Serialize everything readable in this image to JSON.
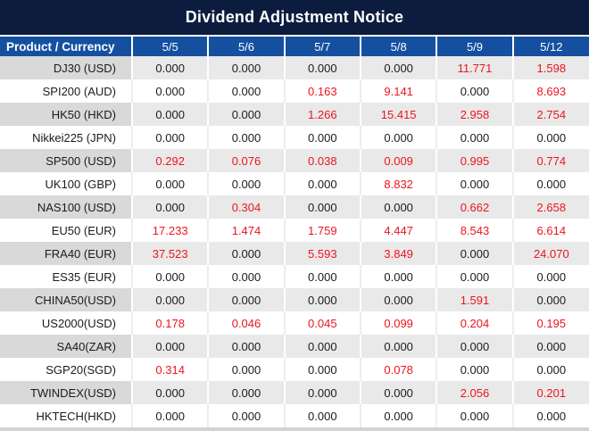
{
  "title": "Dividend Adjustment Notice",
  "table": {
    "product_header": "Product / Currency",
    "dates": [
      "5/5",
      "5/6",
      "5/7",
      "5/8",
      "5/9",
      "5/12"
    ],
    "rows": [
      {
        "product": "DJ30 (USD)",
        "values": [
          "0.000",
          "0.000",
          "0.000",
          "0.000",
          "11.771",
          "1.598"
        ]
      },
      {
        "product": "SPI200 (AUD)",
        "values": [
          "0.000",
          "0.000",
          "0.163",
          "9.141",
          "0.000",
          "8.693"
        ]
      },
      {
        "product": "HK50 (HKD)",
        "values": [
          "0.000",
          "0.000",
          "1.266",
          "15.415",
          "2.958",
          "2.754"
        ]
      },
      {
        "product": "Nikkei225 (JPN)",
        "values": [
          "0.000",
          "0.000",
          "0.000",
          "0.000",
          "0.000",
          "0.000"
        ]
      },
      {
        "product": "SP500 (USD)",
        "values": [
          "0.292",
          "0.076",
          "0.038",
          "0.009",
          "0.995",
          "0.774"
        ]
      },
      {
        "product": "UK100 (GBP)",
        "values": [
          "0.000",
          "0.000",
          "0.000",
          "8.832",
          "0.000",
          "0.000"
        ]
      },
      {
        "product": "NAS100 (USD)",
        "values": [
          "0.000",
          "0.304",
          "0.000",
          "0.000",
          "0.662",
          "2.658"
        ]
      },
      {
        "product": "EU50 (EUR)",
        "values": [
          "17.233",
          "1.474",
          "1.759",
          "4.447",
          "8.543",
          "6.614"
        ]
      },
      {
        "product": "FRA40 (EUR)",
        "values": [
          "37.523",
          "0.000",
          "5.593",
          "3.849",
          "0.000",
          "24.070"
        ]
      },
      {
        "product": "ES35 (EUR)",
        "values": [
          "0.000",
          "0.000",
          "0.000",
          "0.000",
          "0.000",
          "0.000"
        ]
      },
      {
        "product": "CHINA50(USD)",
        "values": [
          "0.000",
          "0.000",
          "0.000",
          "0.000",
          "1.591",
          "0.000"
        ]
      },
      {
        "product": "US2000(USD)",
        "values": [
          "0.178",
          "0.046",
          "0.045",
          "0.099",
          "0.204",
          "0.195"
        ]
      },
      {
        "product": "SA40(ZAR)",
        "values": [
          "0.000",
          "0.000",
          "0.000",
          "0.000",
          "0.000",
          "0.000"
        ]
      },
      {
        "product": "SGP20(SGD)",
        "values": [
          "0.314",
          "0.000",
          "0.000",
          "0.078",
          "0.000",
          "0.000"
        ]
      },
      {
        "product": "TWINDEX(USD)",
        "values": [
          "0.000",
          "0.000",
          "0.000",
          "0.000",
          "2.056",
          "0.201"
        ]
      },
      {
        "product": "HKTECH(HKD)",
        "values": [
          "0.000",
          "0.000",
          "0.000",
          "0.000",
          "0.000",
          "0.000"
        ]
      }
    ],
    "zero_value": "0.000"
  },
  "colors": {
    "title_bar_bg": "#0c1c3e",
    "header_bg": "#1550a0",
    "stripe_label_bg": "#d9d9d9",
    "stripe_value_bg": "#e9e9e9",
    "value_red": "#ee141e",
    "text_black": "#1b1b1b"
  }
}
